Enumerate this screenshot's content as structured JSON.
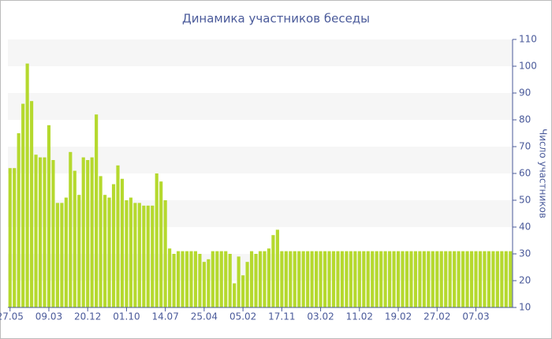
{
  "chart_data": {
    "type": "bar",
    "title": "Динамика участников беседы",
    "y_label": "Число участников",
    "categories": [
      "27.05",
      null,
      null,
      null,
      null,
      null,
      null,
      null,
      null,
      "09.03",
      null,
      null,
      null,
      null,
      null,
      null,
      null,
      null,
      "20.12",
      null,
      null,
      null,
      null,
      null,
      null,
      null,
      null,
      "01.10",
      null,
      null,
      null,
      null,
      null,
      null,
      null,
      null,
      "14.07",
      null,
      null,
      null,
      null,
      null,
      null,
      null,
      null,
      "25.04",
      null,
      null,
      null,
      null,
      null,
      null,
      null,
      null,
      "05.02",
      null,
      null,
      null,
      null,
      null,
      null,
      null,
      null,
      "17.11",
      null,
      null,
      null,
      null,
      null,
      null,
      null,
      null,
      "03.02",
      null,
      null,
      null,
      null,
      null,
      null,
      null,
      null,
      "11.02",
      null,
      null,
      null,
      null,
      null,
      null,
      null,
      null,
      "19.02",
      null,
      null,
      null,
      null,
      null,
      null,
      null,
      null,
      "27.02",
      null,
      null,
      null,
      null,
      null,
      null,
      null,
      null,
      "07.03",
      null,
      null,
      null,
      null,
      null,
      null,
      null,
      null
    ],
    "values": [
      62,
      62,
      75,
      86,
      101,
      87,
      67,
      66,
      66,
      78,
      65,
      49,
      49,
      51,
      68,
      61,
      52,
      66,
      65,
      66,
      82,
      59,
      52,
      51,
      56,
      63,
      58,
      50,
      51,
      49,
      49,
      48,
      48,
      48,
      60,
      57,
      50,
      32,
      30,
      31,
      31,
      31,
      31,
      31,
      30,
      27,
      28,
      31,
      31,
      31,
      31,
      30,
      19,
      29,
      22,
      27,
      31,
      30,
      31,
      31,
      32,
      37,
      39,
      31,
      31,
      31,
      31,
      31,
      31,
      31,
      31,
      31,
      31,
      31,
      31,
      31,
      31,
      31,
      31,
      31,
      31,
      31,
      31,
      31,
      31,
      31,
      31,
      31,
      31,
      31,
      31,
      31,
      31,
      31,
      31,
      31,
      31,
      31,
      31,
      31,
      31,
      31,
      31,
      31,
      31,
      31,
      31,
      31,
      31,
      31,
      31,
      31,
      31,
      31,
      31,
      31,
      31
    ],
    "color": "#b5d92e",
    "ylim": [
      10,
      110
    ],
    "yticks": [
      10,
      20,
      30,
      40,
      50,
      60,
      70,
      80,
      90,
      100,
      110
    ],
    "grid": true,
    "y_axis_side": "right"
  }
}
